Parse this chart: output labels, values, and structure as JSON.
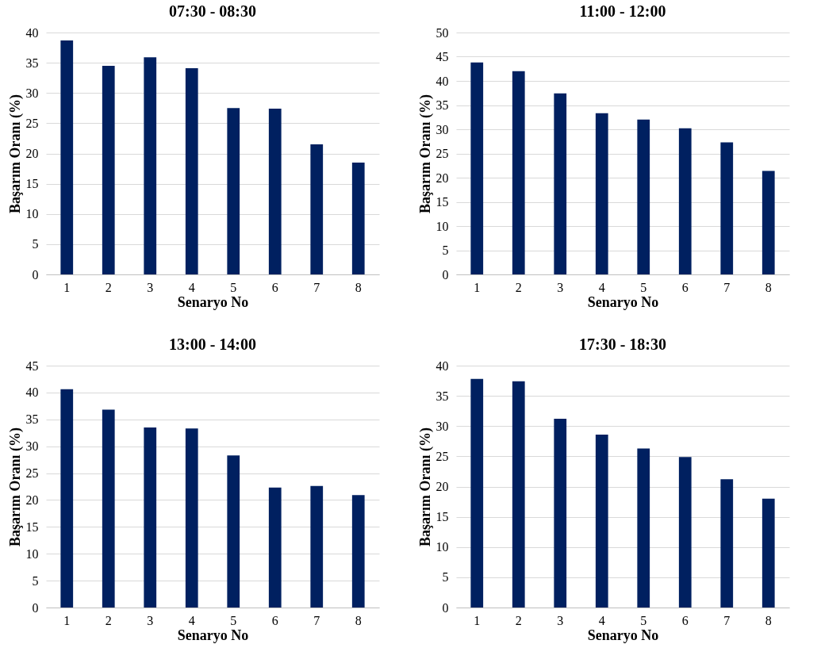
{
  "chart_data": [
    {
      "type": "bar",
      "title": "07:30 - 08:30",
      "xlabel": "Senaryo No",
      "ylabel": "Başarım Oranı (%)",
      "categories": [
        "1",
        "2",
        "3",
        "4",
        "5",
        "6",
        "7",
        "8"
      ],
      "values": [
        38.7,
        34.5,
        35.9,
        34.1,
        27.5,
        27.4,
        21.5,
        18.5
      ],
      "color": "#002060",
      "ylim": [
        0,
        40
      ],
      "yticks": [
        0,
        5,
        10,
        15,
        20,
        25,
        30,
        35,
        40
      ],
      "grid": "y"
    },
    {
      "type": "bar",
      "title": "11:00 - 12:00",
      "xlabel": "Senaryo No",
      "ylabel": "Başarım Oranı (%)",
      "categories": [
        "1",
        "2",
        "3",
        "4",
        "5",
        "6",
        "7",
        "8"
      ],
      "values": [
        43.8,
        42,
        37.4,
        33.3,
        32,
        30.2,
        27.3,
        21.4
      ],
      "color": "#002060",
      "ylim": [
        0,
        50
      ],
      "yticks": [
        0,
        5,
        10,
        15,
        20,
        25,
        30,
        35,
        40,
        45,
        50
      ],
      "grid": "y"
    },
    {
      "type": "bar",
      "title": "13:00 - 14:00",
      "xlabel": "Senaryo No",
      "ylabel": "Başarım Oranı (%)",
      "categories": [
        "1",
        "2",
        "3",
        "4",
        "5",
        "6",
        "7",
        "8"
      ],
      "values": [
        40.6,
        36.8,
        33.5,
        33.3,
        28.3,
        22.3,
        22.6,
        20.9
      ],
      "color": "#002060",
      "ylim": [
        0,
        45
      ],
      "yticks": [
        0,
        5,
        10,
        15,
        20,
        25,
        30,
        35,
        40,
        45
      ],
      "grid": "y"
    },
    {
      "type": "bar",
      "title": "17:30 - 18:30",
      "xlabel": "Senaryo No",
      "ylabel": "Başarım Oranı (%)",
      "categories": [
        "1",
        "2",
        "3",
        "4",
        "5",
        "6",
        "7",
        "8"
      ],
      "values": [
        37.8,
        37.4,
        31.2,
        28.6,
        26.3,
        24.9,
        21.2,
        18
      ],
      "color": "#002060",
      "ylim": [
        0,
        40
      ],
      "yticks": [
        0,
        5,
        10,
        15,
        20,
        25,
        30,
        35,
        40
      ],
      "grid": "y"
    }
  ]
}
